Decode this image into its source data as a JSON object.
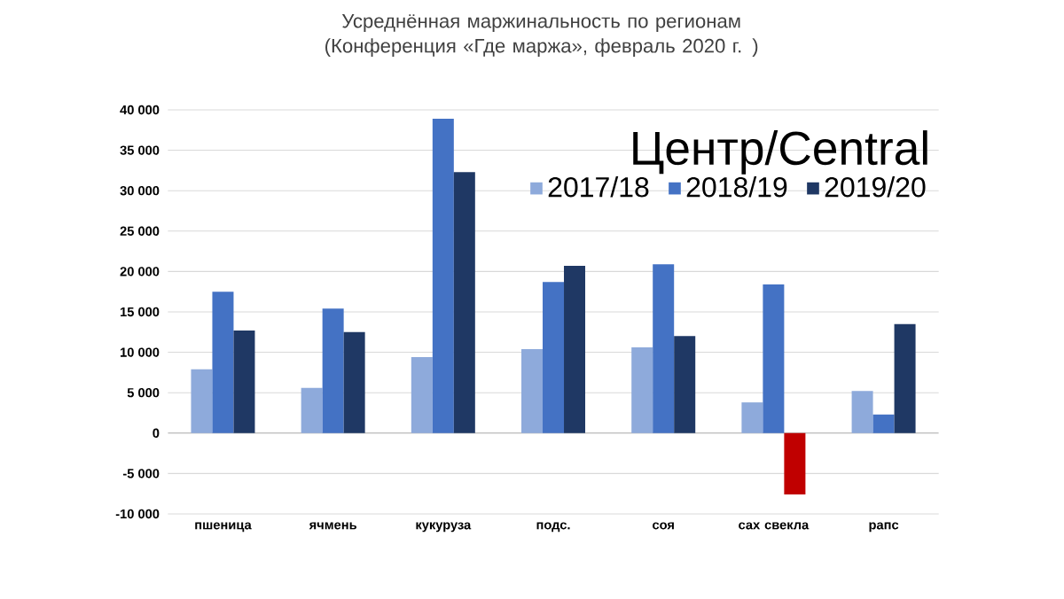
{
  "chart_data": {
    "type": "bar",
    "title": "Усреднённая маржинальность по регионам (Конференция «Где маржа», февраль 2020 г. )",
    "subtitle": "Центр/Central",
    "categories": [
      "пшеница",
      "ячмень",
      "кукуруза",
      "подс.",
      "соя",
      "сах свекла",
      "рапс"
    ],
    "series": [
      {
        "name": "2017/18",
        "color": "#8eaadb",
        "values": [
          7900,
          5600,
          9400,
          10400,
          10600,
          3800,
          5200
        ]
      },
      {
        "name": "2018/19",
        "color": "#4472c4",
        "values": [
          17500,
          15400,
          38900,
          18700,
          20900,
          18400,
          2300
        ]
      },
      {
        "name": "2019/20",
        "color": "#1f3864",
        "colors": [
          "#1f3864",
          "#1f3864",
          "#1f3864",
          "#1f3864",
          "#1f3864",
          "#c00000",
          "#1f3864"
        ],
        "values": [
          12700,
          12500,
          32300,
          20700,
          12000,
          -7600,
          13500
        ]
      }
    ],
    "ylim": [
      -10000,
      40000
    ],
    "yticks": [
      {
        "value": -10000,
        "label": "-10 000"
      },
      {
        "value": -5000,
        "label": "-5 000"
      },
      0,
      {
        "value": 5000,
        "label": "5 000"
      },
      {
        "value": 10000,
        "label": "10 000"
      },
      {
        "value": 15000,
        "label": "15 000"
      },
      {
        "value": 20000,
        "label": "20 000"
      },
      {
        "value": 25000,
        "label": "25 000"
      },
      {
        "value": 30000,
        "label": "30 000"
      },
      {
        "value": 35000,
        "label": "35 000"
      },
      {
        "value": 40000,
        "label": "40 000"
      }
    ],
    "grid": "y",
    "legend": "top right"
  }
}
